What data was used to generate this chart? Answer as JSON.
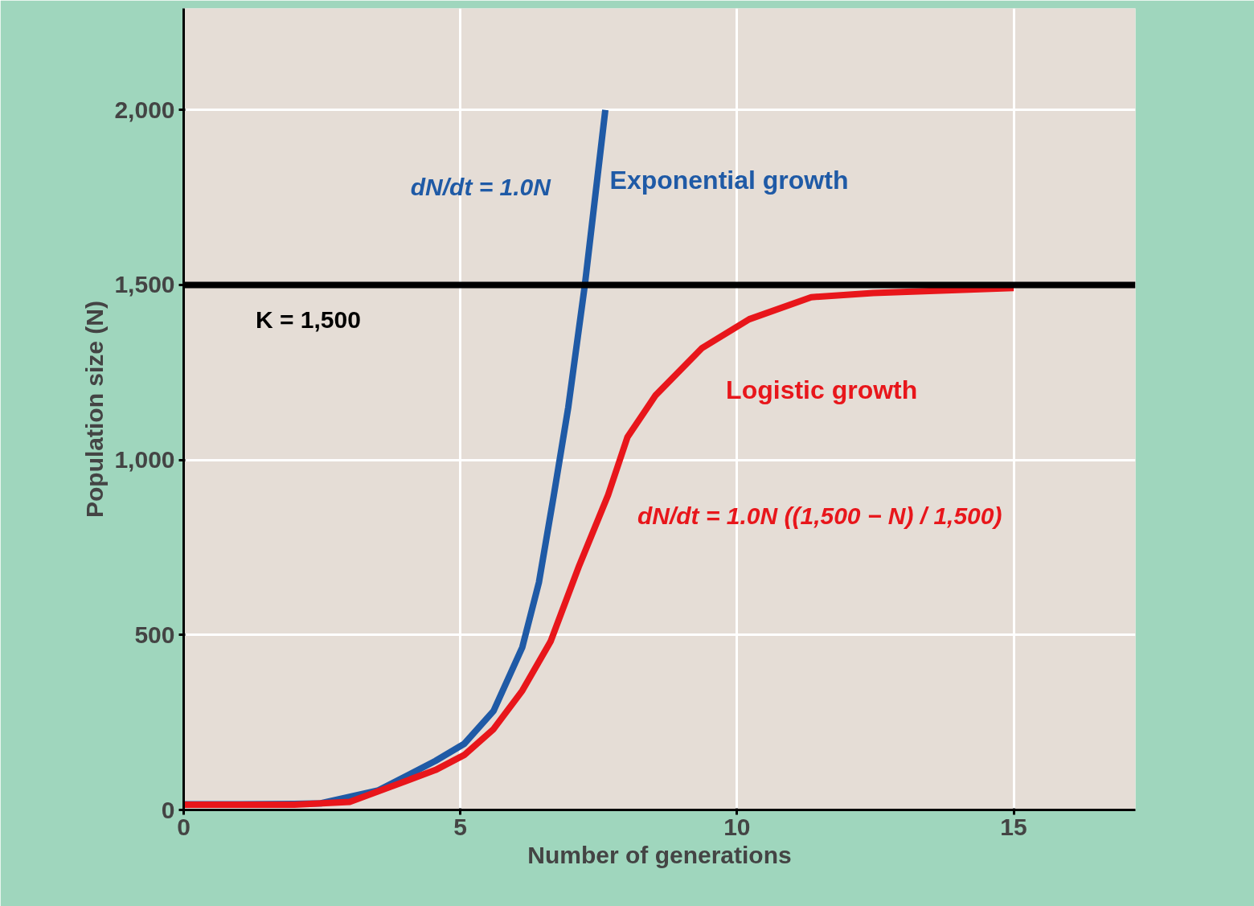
{
  "chart_data": {
    "type": "line",
    "xlabel": "Number of generations",
    "ylabel": "Population size (N)",
    "xlim": [
      0,
      17.2
    ],
    "ylim": [
      0,
      2290
    ],
    "xticks": [
      0,
      5,
      10,
      15
    ],
    "yticks": [
      0,
      500,
      {
        "value": 1000,
        "label": "1,000"
      },
      {
        "value": 1500,
        "label": "1,500"
      },
      {
        "value": 2000,
        "label": "2,000"
      }
    ],
    "grid": true,
    "marker": "none",
    "line_style": "solid",
    "series": [
      {
        "name": "Exponential growth",
        "color": "#1f5aa6",
        "x": [
          0,
          1,
          2,
          2.48,
          3.52,
          4.55,
          5.07,
          5.6,
          6.12,
          6.42,
          6.69,
          6.95,
          7.25,
          7.62
        ],
        "values": [
          16,
          16,
          17,
          19,
          56,
          140,
          189,
          283,
          465,
          650,
          900,
          1150,
          1500,
          2000
        ]
      },
      {
        "name": "Logistic growth",
        "color": "#e8161b",
        "x": [
          0,
          2,
          3.0,
          4.55,
          5.07,
          5.6,
          6.12,
          6.63,
          7.15,
          7.67,
          8.02,
          8.53,
          9.37,
          10.22,
          11.34,
          12.46,
          15
        ],
        "values": [
          15,
          15,
          23,
          114,
          157,
          231,
          341,
          481,
          699,
          900,
          1065,
          1185,
          1320,
          1402,
          1465,
          1477,
          1491
        ]
      }
    ],
    "ref_lines": [
      {
        "axis": "y",
        "value": 1500,
        "label": "K = 1,500",
        "color": "#000000"
      }
    ],
    "annotations": [
      "dN/dt = 1.0N",
      "dN/dt = 1.0N ((1,500 − N) / 1,500)"
    ]
  }
}
